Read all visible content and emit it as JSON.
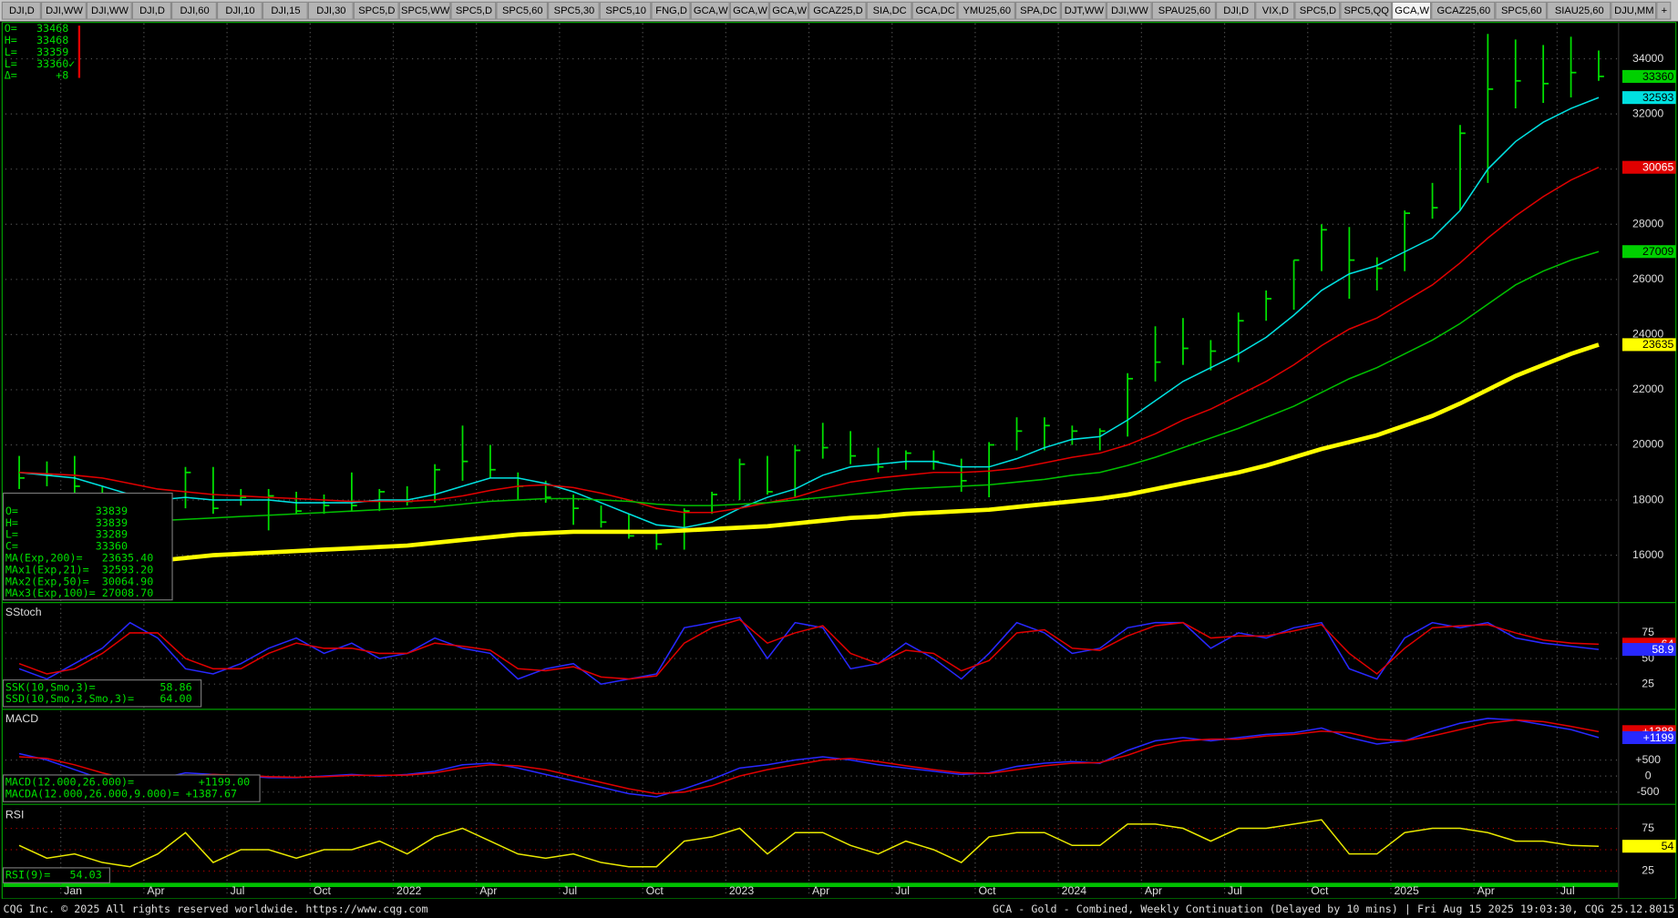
{
  "tabs": [
    "DJI,D",
    "DJI,WW",
    "DJI,WW",
    "DJI,D",
    "DJI,60",
    "DJI,10",
    "DJI,15",
    "DJI,30",
    "SPC5,D",
    "SPC5,WW",
    "SPC5,D",
    "SPC5,60",
    "SPC5,30",
    "SPC5,10",
    "FNG,D",
    "GCA,W",
    "GCA,W",
    "GCA,W",
    "GCAZ25,D",
    "SIA,DC",
    "GCA,DC",
    "YMU25,60",
    "SPA,DC",
    "DJT,WW",
    "DJI,WW",
    "SPAU25,60",
    "DJI,D",
    "VIX,D",
    "SPC5,D",
    "SPC5,QQ",
    "GCA,W",
    "GCAZ25,60",
    "SPC5,60",
    "SIAU25,60",
    "DJU,MM",
    "+"
  ],
  "active_tab": 30,
  "quote": [
    "O=   33468",
    "H=   33468",
    "L=   33359",
    "L=   33360✓",
    "Δ=      +8"
  ],
  "footer": {
    "left": "CQG Inc. © 2025 All rights reserved worldwide. https://www.cqg.com",
    "right": "GCA - Gold - Combined, Weekly Continuation (Delayed by 10 mins) | Fri Aug 15 2025 19:03:30, CQG 25.12.8015"
  },
  "chart_data": [
    {
      "type": "ohlc",
      "color": "#00e000",
      "high": [
        19600,
        19400,
        19600,
        18500,
        17800,
        18000,
        19200,
        19200,
        18400,
        18400,
        18300,
        18200,
        19000,
        18400,
        18500,
        19300,
        20700,
        20000,
        19000,
        18700,
        18200,
        17800,
        17500,
        16900,
        17700,
        18300,
        19500,
        19600,
        20000,
        20800,
        20500,
        19900,
        19800,
        19800,
        19500,
        20100,
        21000,
        21000,
        20700,
        20600,
        22600,
        24300,
        24600,
        23800,
        24800,
        25600,
        26700,
        28000,
        27900,
        26800,
        28500,
        29500,
        31600,
        34900,
        34700,
        34500,
        34800,
        34300
      ],
      "low": [
        18400,
        18500,
        18000,
        17100,
        16800,
        17000,
        17700,
        17500,
        17800,
        16900,
        17500,
        17500,
        17600,
        17600,
        17800,
        17900,
        18700,
        18800,
        18000,
        17900,
        17100,
        17000,
        16600,
        16200,
        16200,
        17500,
        18000,
        18200,
        18100,
        19500,
        19300,
        19000,
        19100,
        19100,
        18300,
        18100,
        19800,
        19800,
        20000,
        19800,
        20300,
        22300,
        22900,
        22700,
        23000,
        24500,
        24900,
        26300,
        25300,
        25600,
        26300,
        28200,
        28500,
        29500,
        32200,
        32400,
        32600,
        33200
      ],
      "close": [
        18800,
        18900,
        18500,
        17400,
        17200,
        17700,
        19000,
        17700,
        18100,
        18150,
        17600,
        17800,
        17800,
        18300,
        17950,
        19100,
        19400,
        19100,
        18500,
        18100,
        17700,
        17200,
        16700,
        16400,
        17600,
        18200,
        19300,
        18300,
        19800,
        19900,
        19600,
        19200,
        19700,
        19400,
        18700,
        20000,
        20500,
        20700,
        20500,
        20500,
        22400,
        23000,
        23500,
        23400,
        24500,
        25300,
        26700,
        27800,
        26700,
        26400,
        28400,
        28600,
        31300,
        32900,
        33200,
        33100,
        33500,
        33360
      ],
      "series": [
        {
          "color": "#00e0e0",
          "values": [
            19000,
            18900,
            18800,
            18500,
            18200,
            18000,
            18100,
            18000,
            18000,
            18000,
            17900,
            17900,
            17900,
            18000,
            18000,
            18200,
            18500,
            18800,
            18800,
            18600,
            18300,
            17900,
            17500,
            17100,
            17000,
            17200,
            17700,
            18100,
            18400,
            18900,
            19200,
            19300,
            19400,
            19400,
            19200,
            19200,
            19500,
            19900,
            20200,
            20300,
            20900,
            21600,
            22300,
            22800,
            23300,
            23900,
            24700,
            25600,
            26200,
            26500,
            27000,
            27500,
            28500,
            30000,
            31000,
            31700,
            32200,
            32593
          ]
        },
        {
          "color": "#e00000",
          "values": [
            19000,
            18950,
            18900,
            18800,
            18600,
            18400,
            18300,
            18200,
            18150,
            18100,
            18050,
            18000,
            17950,
            17950,
            17950,
            18000,
            18150,
            18350,
            18500,
            18550,
            18450,
            18250,
            18000,
            17700,
            17550,
            17550,
            17700,
            17900,
            18100,
            18400,
            18650,
            18800,
            18900,
            19000,
            19000,
            19050,
            19150,
            19350,
            19550,
            19700,
            20000,
            20400,
            20900,
            21300,
            21800,
            22300,
            22900,
            23600,
            24200,
            24600,
            25200,
            25800,
            26600,
            27500,
            28300,
            29000,
            29600,
            30065
          ]
        },
        {
          "color": "#00c000",
          "values": [
            17000,
            17050,
            17100,
            17150,
            17200,
            17250,
            17300,
            17350,
            17400,
            17450,
            17500,
            17550,
            17600,
            17650,
            17700,
            17750,
            17850,
            17950,
            18000,
            18050,
            18050,
            18000,
            17950,
            17850,
            17800,
            17800,
            17850,
            17900,
            18000,
            18100,
            18200,
            18300,
            18400,
            18450,
            18500,
            18550,
            18650,
            18750,
            18900,
            19000,
            19250,
            19550,
            19900,
            20250,
            20600,
            21000,
            21400,
            21900,
            22400,
            22800,
            23300,
            23800,
            24400,
            25100,
            25800,
            26300,
            26700,
            27009
          ]
        },
        {
          "color": "#ffff00",
          "bold": true,
          "values": [
            15300,
            15400,
            15500,
            15600,
            15700,
            15800,
            15900,
            16000,
            16050,
            16100,
            16150,
            16200,
            16250,
            16300,
            16350,
            16450,
            16550,
            16650,
            16750,
            16800,
            16850,
            16850,
            16850,
            16850,
            16900,
            16950,
            17000,
            17050,
            17150,
            17250,
            17350,
            17400,
            17500,
            17550,
            17600,
            17650,
            17750,
            17850,
            17950,
            18050,
            18200,
            18400,
            18600,
            18800,
            19000,
            19250,
            19550,
            19850,
            20100,
            20350,
            20700,
            21050,
            21500,
            22000,
            22500,
            22900,
            23300,
            23635
          ]
        }
      ],
      "ylim": [
        14340,
        35280
      ],
      "yticks": [
        16000,
        18000,
        20000,
        22000,
        24000,
        26000,
        28000,
        30000,
        32000,
        34000
      ],
      "grid_color": "#555555",
      "markers": [
        {
          "value": 33360,
          "color": "#00d000",
          "text_color": "#000000"
        },
        {
          "value": 32593,
          "color": "#00e0e0",
          "text_color": "#000000"
        },
        {
          "value": 30065,
          "color": "#e00000",
          "text_color": "#ffffff"
        },
        {
          "value": 27009,
          "color": "#00d000",
          "text_color": "#000000"
        },
        {
          "value": 23635,
          "color": "#ffff00",
          "text_color": "#000000"
        }
      ],
      "readouts": [
        "O=            33839",
        "H=            33839",
        "L=            33289",
        "C=            33360",
        "MA(Exp,200)=   23635.40",
        "MAx1(Exp,21)=  32593.20",
        "MAx2(Exp,50)=  30064.90",
        "MAx3(Exp,100)= 27008.70"
      ]
    },
    {
      "type": "line",
      "title": "SStoch",
      "series": [
        {
          "color": "#2828ff",
          "values": [
            40,
            30,
            45,
            60,
            85,
            70,
            40,
            35,
            45,
            60,
            70,
            55,
            65,
            50,
            55,
            70,
            60,
            55,
            30,
            40,
            45,
            25,
            30,
            35,
            80,
            85,
            90,
            50,
            85,
            80,
            40,
            45,
            65,
            50,
            30,
            55,
            85,
            75,
            55,
            60,
            80,
            85,
            85,
            60,
            75,
            70,
            80,
            85,
            40,
            30,
            70,
            85,
            80,
            85,
            70,
            65,
            62,
            58.86
          ]
        },
        {
          "color": "#e00000",
          "values": [
            45,
            35,
            40,
            55,
            75,
            75,
            50,
            40,
            40,
            55,
            65,
            60,
            60,
            55,
            55,
            65,
            62,
            58,
            40,
            38,
            42,
            32,
            30,
            33,
            65,
            80,
            88,
            65,
            75,
            82,
            55,
            45,
            58,
            55,
            38,
            48,
            75,
            78,
            60,
            58,
            72,
            82,
            85,
            70,
            72,
            72,
            77,
            83,
            55,
            35,
            60,
            80,
            82,
            83,
            75,
            68,
            65,
            64
          ]
        }
      ],
      "ylim": [
        2,
        103
      ],
      "yticks": [
        25,
        50,
        75
      ],
      "grid_color": "#555555",
      "markers": [
        {
          "value": 64,
          "color": "#e00000",
          "text_color": "#ffffff"
        },
        {
          "value": 58.86,
          "label": "58.9",
          "color": "#2828ff",
          "text_color": "#ffffff"
        }
      ],
      "readouts": [
        "SSK(10,Smo,3)=          58.86",
        "SSD(10,Smo,3,Smo,3)=    64.00"
      ]
    },
    {
      "type": "line",
      "title": "MACD",
      "series": [
        {
          "color": "#2828ff",
          "values": [
            700,
            500,
            200,
            -100,
            -200,
            -100,
            100,
            50,
            0,
            -50,
            -50,
            0,
            50,
            0,
            50,
            150,
            350,
            400,
            250,
            50,
            -150,
            -350,
            -550,
            -650,
            -400,
            -100,
            250,
            350,
            500,
            600,
            500,
            350,
            250,
            150,
            50,
            100,
            300,
            400,
            450,
            400,
            800,
            1100,
            1200,
            1100,
            1200,
            1300,
            1350,
            1500,
            1200,
            1000,
            1100,
            1400,
            1650,
            1800,
            1750,
            1600,
            1450,
            1199
          ]
        },
        {
          "color": "#e00000",
          "values": [
            600,
            550,
            350,
            100,
            -100,
            -150,
            0,
            50,
            20,
            -20,
            -40,
            -20,
            20,
            20,
            30,
            100,
            250,
            350,
            320,
            200,
            0,
            -200,
            -400,
            -550,
            -500,
            -300,
            0,
            200,
            350,
            500,
            550,
            450,
            320,
            200,
            100,
            80,
            200,
            320,
            400,
            420,
            650,
            950,
            1100,
            1150,
            1150,
            1250,
            1300,
            1400,
            1350,
            1150,
            1100,
            1250,
            1450,
            1650,
            1750,
            1700,
            1550,
            1387.67
          ]
        }
      ],
      "ylim": [
        -833,
        2033
      ],
      "yticks": [
        {
          "value": 500,
          "label": "+500"
        },
        0,
        -500
      ],
      "grid_color": "#555555",
      "markers": [
        {
          "value": 1387.67,
          "label": "+1388",
          "color": "#e00000",
          "text_color": "#ffffff"
        },
        {
          "value": 1199,
          "label": "+1199",
          "color": "#2828ff",
          "text_color": "#ffffff"
        }
      ],
      "readouts": [
        "MACD(12.000,26.000)=          +1199.00",
        "MACDA(12.000,26.000,9.000)= +1387.67"
      ]
    },
    {
      "type": "line",
      "title": "RSI",
      "categories": [
        null,
        null,
        "Jan",
        null,
        null,
        "Apr",
        null,
        null,
        "Jul",
        null,
        null,
        "Oct",
        null,
        null,
        "2022",
        null,
        null,
        "Apr",
        null,
        null,
        "Jul",
        null,
        null,
        "Oct",
        null,
        null,
        "2023",
        null,
        null,
        "Apr",
        null,
        null,
        "Jul",
        null,
        null,
        "Oct",
        null,
        null,
        "2024",
        null,
        null,
        "Apr",
        null,
        null,
        "Jul",
        null,
        null,
        "Oct",
        null,
        null,
        "2025",
        null,
        null,
        "Apr",
        null,
        null,
        "Jul",
        null
      ],
      "series": [
        {
          "color": "#e8e800",
          "values": [
            55,
            40,
            45,
            35,
            30,
            45,
            70,
            35,
            50,
            50,
            40,
            50,
            50,
            60,
            45,
            65,
            75,
            60,
            45,
            40,
            45,
            35,
            30,
            30,
            60,
            65,
            75,
            45,
            70,
            70,
            55,
            45,
            60,
            50,
            35,
            65,
            70,
            70,
            55,
            55,
            80,
            80,
            75,
            60,
            75,
            75,
            80,
            85,
            45,
            45,
            70,
            75,
            75,
            70,
            60,
            60,
            55,
            54.03
          ]
        }
      ],
      "ylim": [
        -5,
        100
      ],
      "yticks": [
        25,
        50,
        75
      ],
      "grid_color": "#b00000",
      "markers": [
        {
          "value": 54.03,
          "label": "54",
          "color": "#ffff00",
          "text_color": "#000000"
        }
      ],
      "readouts": [
        "RSI(9)=   54.03"
      ]
    }
  ]
}
